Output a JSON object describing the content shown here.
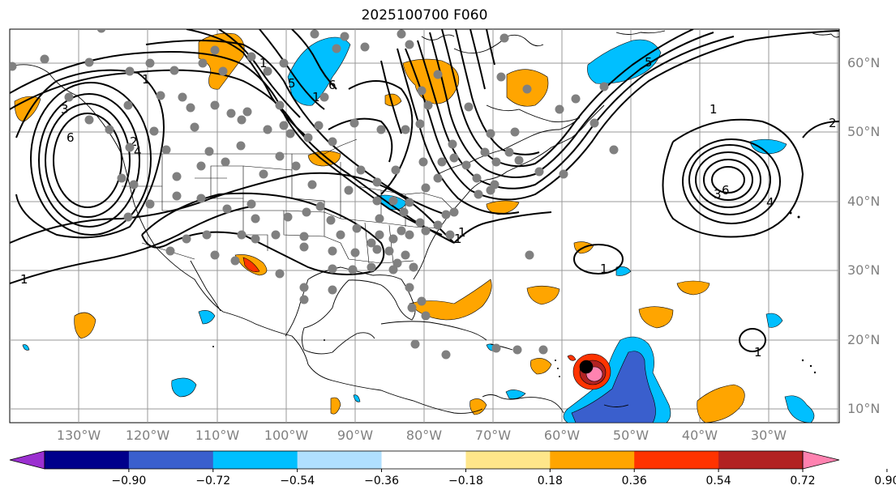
{
  "title": "2025100700 F060",
  "map": {
    "lat_labels": [
      "60°N",
      "50°N",
      "40°N",
      "30°N",
      "20°N",
      "10°N"
    ],
    "lon_labels": [
      "130°W",
      "120°W",
      "110°W",
      "100°W",
      "90°W",
      "80°W",
      "70°W",
      "60°W",
      "50°W",
      "40°W",
      "30°W"
    ],
    "contour_labels": [
      "1",
      "6",
      "3",
      "4",
      "2",
      "1",
      "6",
      "5",
      "1",
      "1",
      "5",
      "1",
      "6",
      "3",
      "4",
      "2",
      "1",
      "1",
      "1",
      "1"
    ]
  },
  "colorbar": {
    "ticks": [
      "−0.90",
      "−0.72",
      "−0.54",
      "−0.36",
      "−0.18",
      "0.18",
      "0.36",
      "0.54",
      "0.72",
      "0.90"
    ],
    "colors": [
      "#9b30d0",
      "#00008b",
      "#3a5fcd",
      "#00bfff",
      "#b0e0ff",
      "#ffffff",
      "#ffe68a",
      "#ffa500",
      "#ff3300",
      "#b22222",
      "#ff82b0"
    ]
  }
}
